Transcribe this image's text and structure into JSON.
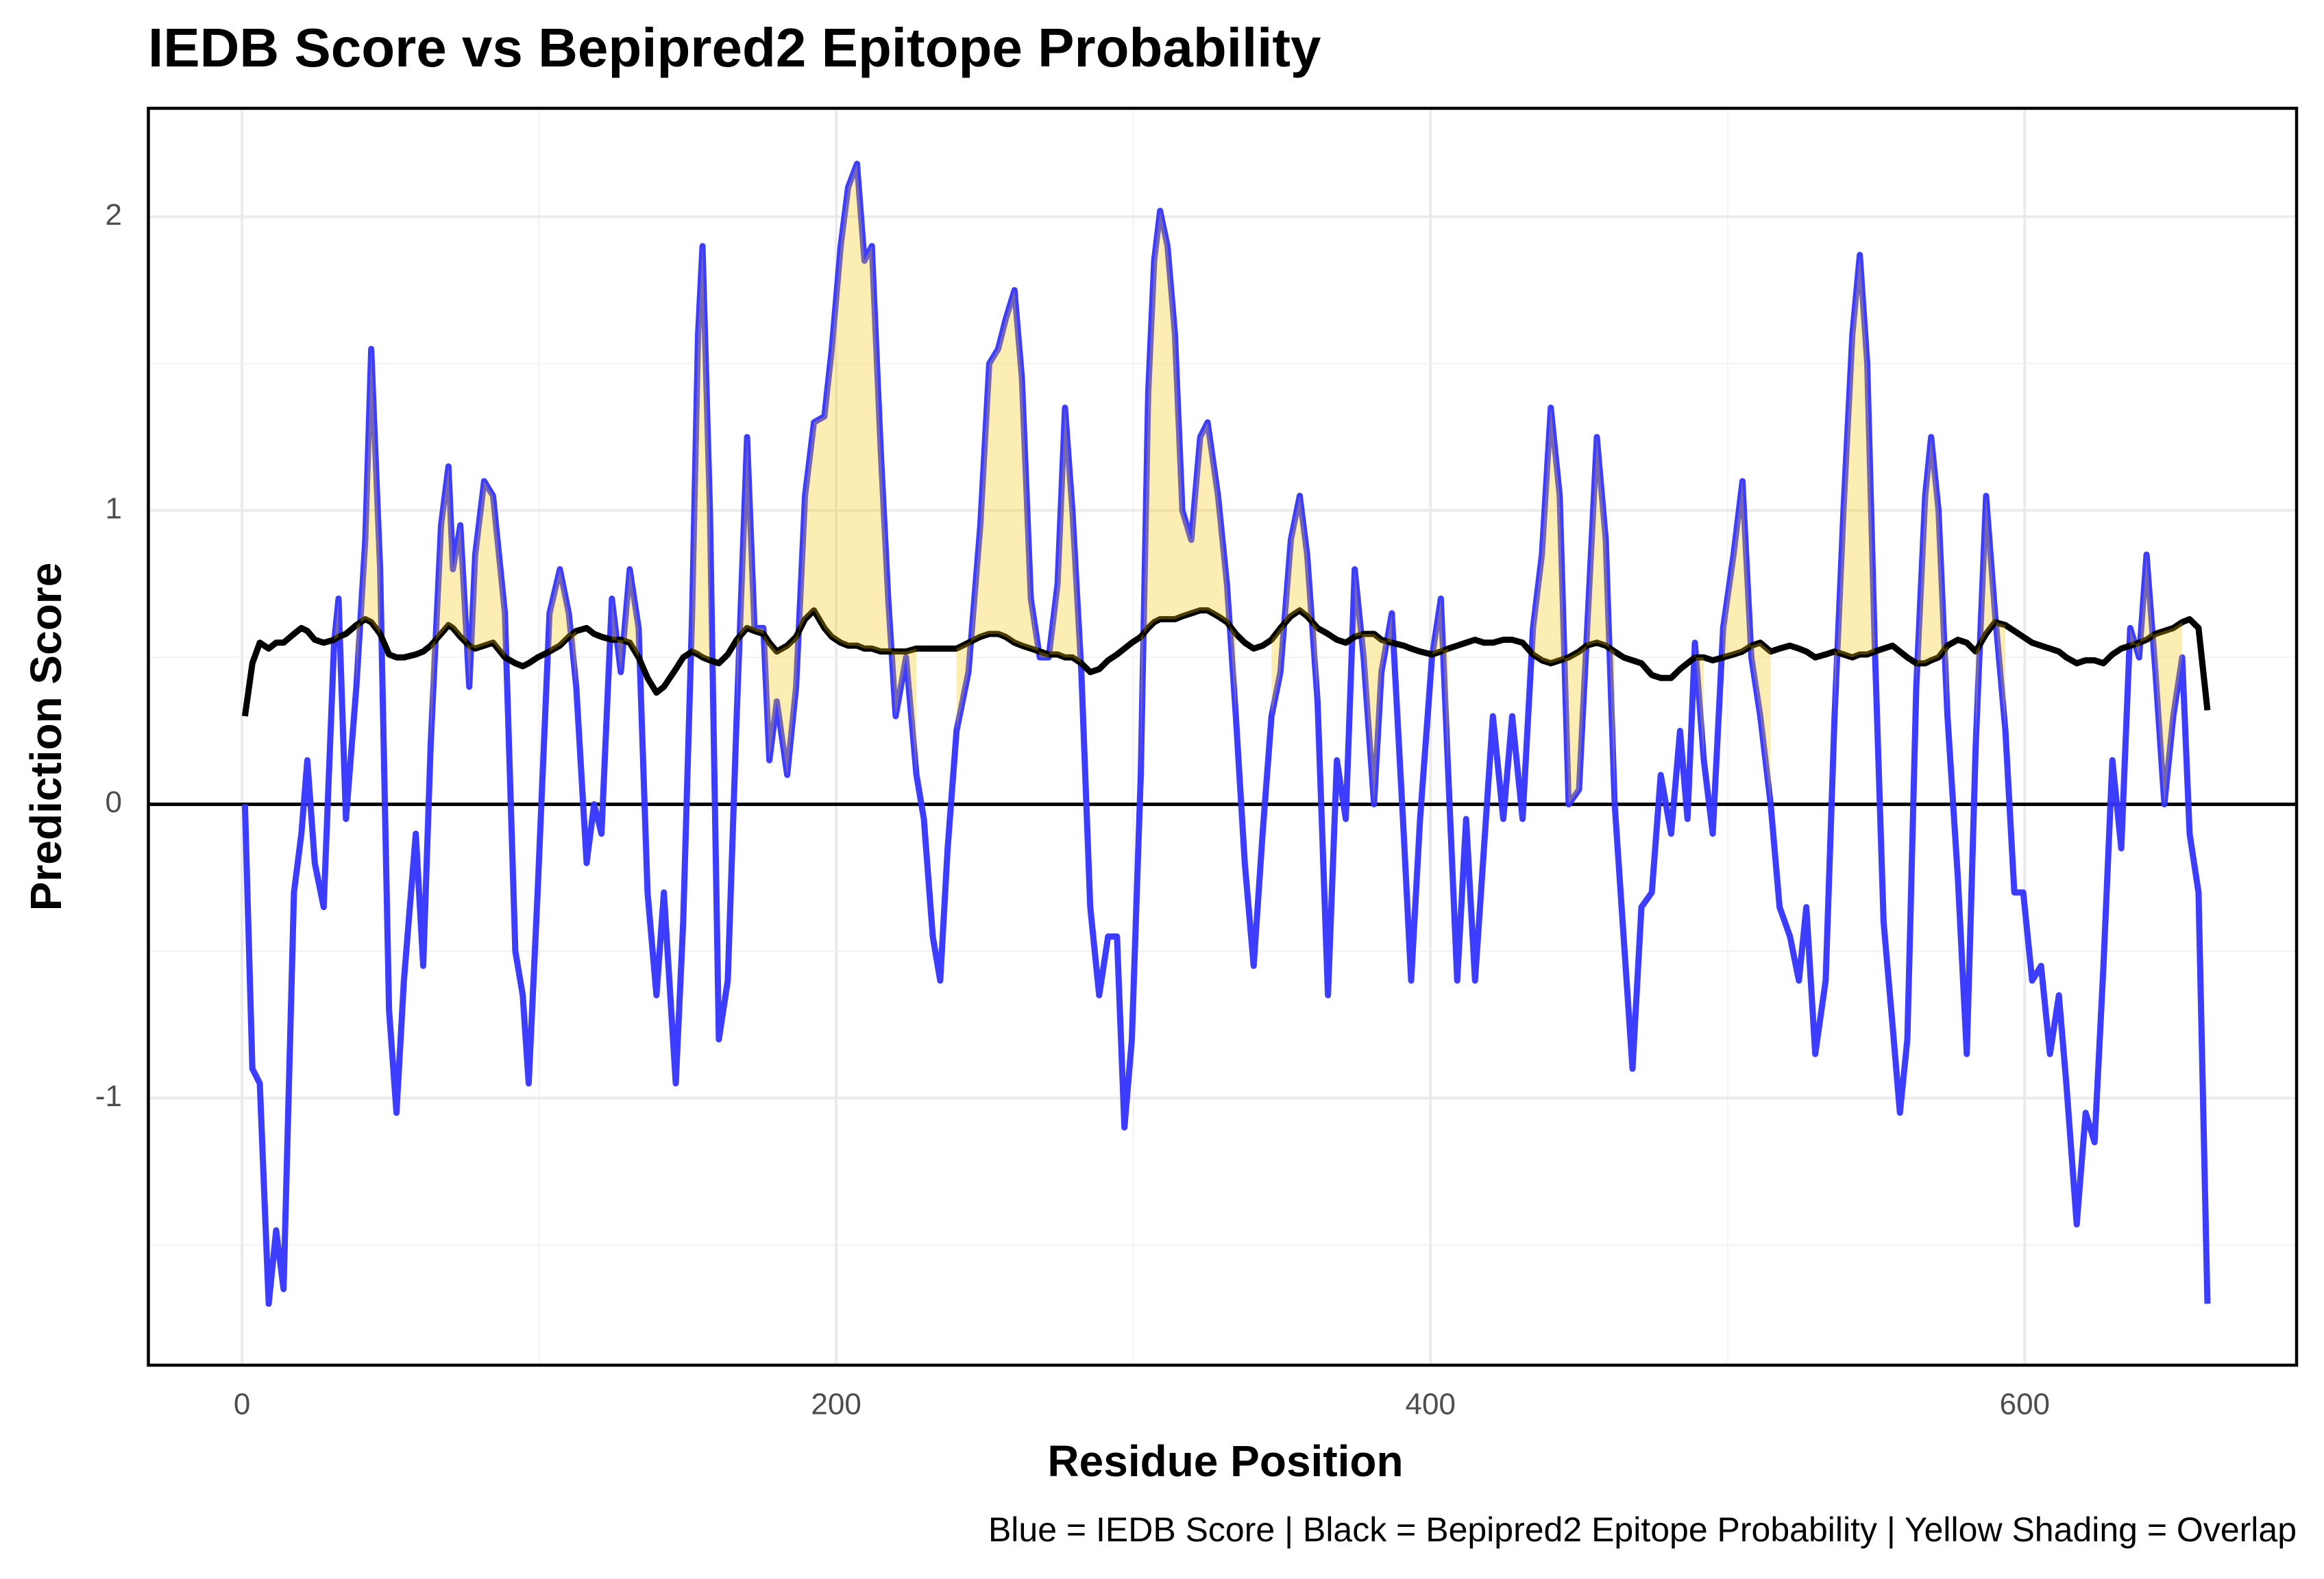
{
  "chart_data": {
    "type": "line",
    "title": "IEDB Score vs Bepipred2 Epitope Probability",
    "x_label": "Residue Position",
    "y_label": "Prediction Score",
    "caption": "Blue = IEDB Score | Black = Bepipred2 Epitope Probability | Yellow Shading = Overlap",
    "xlim": [
      -31.5,
      691.5
    ],
    "ylim": [
      -1.909,
      2.369
    ],
    "xticks": [
      0,
      200,
      400,
      600
    ],
    "yticks": [
      -1,
      0,
      1,
      2
    ],
    "x_minor_grid": [
      100,
      300,
      500
    ],
    "y_minor_grid": [
      -1.5,
      -0.5,
      0.5,
      1.5
    ],
    "grid": true,
    "hline": 0,
    "overlap_color": "#f5c800",
    "x": [
      1,
      3.5,
      6,
      9,
      11.5,
      14,
      17.5,
      20,
      22,
      24.5,
      27.5,
      31,
      32.5,
      35,
      38.5,
      41.5,
      43.5,
      46.5,
      49.5,
      52,
      54.5,
      58.5,
      61,
      63.5,
      67,
      69.5,
      71,
      73.5,
      76.5,
      78.5,
      81.5,
      84.5,
      88.5,
      92,
      94.5,
      96.5,
      99.5,
      103.5,
      107,
      110,
      112.5,
      116,
      118.5,
      121,
      124.5,
      127.5,
      130.5,
      133.5,
      136.5,
      139.5,
      142,
      146,
      148.5,
      151.5,
      153.5,
      155,
      157.5,
      160.5,
      163.5,
      166.5,
      170,
      172.5,
      175.5,
      177.5,
      180,
      183.5,
      186.5,
      189.5,
      192.5,
      196,
      198.5,
      201.5,
      204,
      207,
      209.5,
      212,
      215,
      217.5,
      220,
      223.5,
      227,
      229.5,
      232.5,
      235,
      237.5,
      240.5,
      244.5,
      248.5,
      251.5,
      254.5,
      257,
      260,
      262.5,
      265.5,
      268.5,
      271.5,
      274.5,
      277,
      279.5,
      282.5,
      285.5,
      288.5,
      291.5,
      294.5,
      297,
      299.5,
      302.5,
      305,
      307,
      309,
      311.5,
      314,
      316.5,
      319.5,
      322.5,
      325,
      328.5,
      331.5,
      334.5,
      337.5,
      340.5,
      343.5,
      346.5,
      349.5,
      353,
      356,
      358.5,
      362,
      365.5,
      368.5,
      371.5,
      374.5,
      377.5,
      381,
      383.5,
      387,
      391,
      393.5,
      396.5,
      400.5,
      403.5,
      406,
      409,
      412,
      415,
      418,
      421,
      424.5,
      427.5,
      431,
      434.5,
      437.5,
      440.5,
      443.5,
      446.5,
      450,
      452.5,
      456,
      459,
      462,
      465,
      468,
      471,
      474.5,
      477.5,
      481,
      484,
      486.5,
      489,
      492,
      495,
      498.5,
      502,
      505,
      508,
      511,
      514.5,
      517.5,
      521,
      524,
      526.5,
      529.5,
      533,
      536,
      539,
      542,
      544.5,
      547,
      549.5,
      552.5,
      555.5,
      558,
      560.5,
      563.5,
      566.5,
      568.5,
      571,
      574,
      577.5,
      580.5,
      583.5,
      587,
      590,
      593.5,
      596.5,
      599.5,
      602.5,
      605.5,
      608.5,
      611.5,
      614,
      617.5,
      620.5,
      623.5,
      626.5,
      629.5,
      632.5,
      635.5,
      638.5,
      641,
      644,
      647,
      650,
      653,
      655.5,
      658.5,
      661.5
    ],
    "series": [
      {
        "color": "#3333ff",
        "values": [
          0,
          -0.9,
          -0.95,
          -1.7,
          -1.45,
          -1.65,
          -0.3,
          -0.1,
          0.15,
          -0.2,
          -0.35,
          0.55,
          0.7,
          -0.05,
          0.4,
          0.9,
          1.55,
          0.8,
          -0.7,
          -1.05,
          -0.6,
          -0.1,
          -0.55,
          0.2,
          0.95,
          1.15,
          0.8,
          0.95,
          0.4,
          0.85,
          1.1,
          1.05,
          0.65,
          -0.5,
          -0.65,
          -0.95,
          -0.3,
          0.65,
          0.8,
          0.65,
          0.4,
          -0.2,
          0,
          -0.1,
          0.7,
          0.45,
          0.8,
          0.6,
          -0.3,
          -0.65,
          -0.3,
          -0.95,
          -0.4,
          0.65,
          1.6,
          1.9,
          1,
          -0.8,
          -0.6,
          0.3,
          1.25,
          0.6,
          0.6,
          0.15,
          0.35,
          0.1,
          0.4,
          1.05,
          1.3,
          1.32,
          1.55,
          1.9,
          2.1,
          2.18,
          1.85,
          1.9,
          1.2,
          0.7,
          0.3,
          0.5,
          0.1,
          -0.05,
          -0.45,
          -0.6,
          -0.15,
          0.25,
          0.45,
          0.95,
          1.5,
          1.55,
          1.65,
          1.75,
          1.45,
          0.7,
          0.5,
          0.5,
          0.75,
          1.35,
          1,
          0.45,
          -0.35,
          -0.65,
          -0.45,
          -0.45,
          -1.1,
          -0.8,
          0.1,
          1.4,
          1.85,
          2.02,
          1.9,
          1.6,
          1,
          0.9,
          1.25,
          1.3,
          1.05,
          0.75,
          0.3,
          -0.2,
          -0.55,
          -0.1,
          0.3,
          0.45,
          0.9,
          1.05,
          0.85,
          0.35,
          -0.65,
          0.15,
          -0.05,
          0.8,
          0.5,
          0,
          0.45,
          0.65,
          -0.1,
          -0.6,
          -0.05,
          0.5,
          0.7,
          0.1,
          -0.6,
          -0.05,
          -0.6,
          -0.15,
          0.3,
          -0.05,
          0.3,
          -0.05,
          0.6,
          0.85,
          1.35,
          1.05,
          0,
          0.05,
          0.55,
          1.25,
          0.9,
          0,
          -0.45,
          -0.9,
          -0.35,
          -0.3,
          0.1,
          -0.1,
          0.25,
          -0.05,
          0.55,
          0.15,
          -0.1,
          0.6,
          0.85,
          1.1,
          0.5,
          0.3,
          0,
          -0.35,
          -0.45,
          -0.6,
          -0.35,
          -0.85,
          -0.6,
          0.3,
          1,
          1.6,
          1.87,
          1.5,
          0.55,
          -0.4,
          -0.75,
          -1.05,
          -0.8,
          0.4,
          1.05,
          1.25,
          1,
          0.3,
          -0.25,
          -0.85,
          0.2,
          1.05,
          0.65,
          0.25,
          -0.3,
          -0.3,
          -0.6,
          -0.55,
          -0.85,
          -0.65,
          -0.95,
          -1.43,
          -1.05,
          -1.15,
          -0.55,
          0.15,
          -0.15,
          0.6,
          0.5,
          0.85,
          0.45,
          0,
          0.3,
          0.5,
          -0.1,
          -0.3,
          -1.7
        ]
      },
      {
        "color": "#000000",
        "values": [
          0.3,
          0.48,
          0.55,
          0.53,
          0.55,
          0.55,
          0.58,
          0.6,
          0.59,
          0.56,
          0.55,
          0.56,
          0.57,
          0.58,
          0.61,
          0.63,
          0.62,
          0.58,
          0.51,
          0.5,
          0.5,
          0.51,
          0.52,
          0.54,
          0.58,
          0.61,
          0.6,
          0.57,
          0.54,
          0.53,
          0.54,
          0.55,
          0.5,
          0.48,
          0.47,
          0.48,
          0.5,
          0.52,
          0.54,
          0.57,
          0.59,
          0.6,
          0.58,
          0.57,
          0.56,
          0.56,
          0.55,
          0.5,
          0.43,
          0.38,
          0.4,
          0.46,
          0.5,
          0.52,
          0.51,
          0.5,
          0.49,
          0.48,
          0.51,
          0.56,
          0.6,
          0.59,
          0.58,
          0.55,
          0.52,
          0.54,
          0.57,
          0.63,
          0.66,
          0.6,
          0.57,
          0.55,
          0.54,
          0.54,
          0.53,
          0.53,
          0.52,
          0.52,
          0.52,
          0.52,
          0.53,
          0.53,
          0.53,
          0.53,
          0.53,
          0.53,
          0.55,
          0.57,
          0.58,
          0.58,
          0.57,
          0.55,
          0.54,
          0.53,
          0.52,
          0.51,
          0.51,
          0.5,
          0.5,
          0.48,
          0.45,
          0.46,
          0.49,
          0.51,
          0.53,
          0.55,
          0.57,
          0.6,
          0.62,
          0.63,
          0.63,
          0.63,
          0.64,
          0.65,
          0.66,
          0.66,
          0.64,
          0.62,
          0.58,
          0.55,
          0.53,
          0.54,
          0.56,
          0.6,
          0.64,
          0.66,
          0.64,
          0.6,
          0.58,
          0.56,
          0.55,
          0.57,
          0.58,
          0.58,
          0.56,
          0.55,
          0.54,
          0.53,
          0.52,
          0.51,
          0.52,
          0.53,
          0.54,
          0.55,
          0.56,
          0.55,
          0.55,
          0.56,
          0.56,
          0.55,
          0.51,
          0.49,
          0.48,
          0.49,
          0.5,
          0.52,
          0.54,
          0.55,
          0.54,
          0.52,
          0.5,
          0.49,
          0.48,
          0.44,
          0.43,
          0.43,
          0.46,
          0.48,
          0.5,
          0.5,
          0.49,
          0.5,
          0.51,
          0.52,
          0.54,
          0.55,
          0.52,
          0.53,
          0.54,
          0.53,
          0.52,
          0.5,
          0.51,
          0.52,
          0.51,
          0.5,
          0.51,
          0.51,
          0.52,
          0.53,
          0.54,
          0.52,
          0.5,
          0.48,
          0.48,
          0.49,
          0.5,
          0.54,
          0.56,
          0.55,
          0.52,
          0.58,
          0.62,
          0.61,
          0.59,
          0.57,
          0.55,
          0.54,
          0.53,
          0.52,
          0.5,
          0.48,
          0.49,
          0.49,
          0.48,
          0.51,
          0.53,
          0.54,
          0.55,
          0.56,
          0.58,
          0.59,
          0.6,
          0.62,
          0.63,
          0.6,
          0.32
        ]
      }
    ]
  }
}
